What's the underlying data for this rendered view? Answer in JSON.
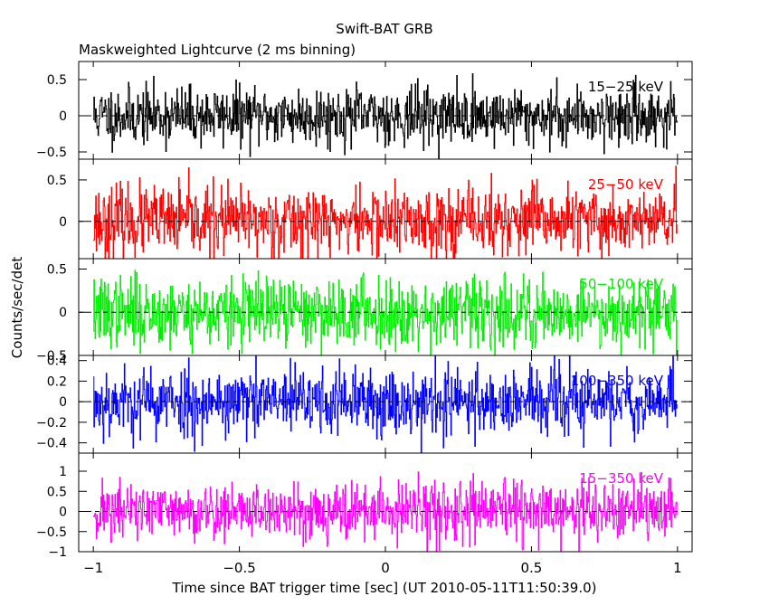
{
  "header": {
    "title": "Swift-BAT GRB",
    "subtitle": "Maskweighted Lightcurve (2 ms binning)"
  },
  "axes": {
    "xlabel": "Time since BAT trigger time [sec] (UT 2010-05-11T11:50:39.0)",
    "ylabel": "Counts/sec/det",
    "xlim": [
      -1.05,
      1.05
    ],
    "x_ticks": [
      -1,
      -0.5,
      0,
      0.5,
      1
    ],
    "x_tick_labels": [
      "−1",
      "−0.5",
      "0",
      "0.5",
      "1"
    ]
  },
  "chart_data": {
    "type": "line",
    "x_range": [
      -1.0,
      1.0
    ],
    "bin_width_sec": 0.002,
    "panels": [
      {
        "name": "15-25 keV",
        "label": "15−25 keV",
        "color": "#000000",
        "ylim": [
          -0.6,
          0.75
        ],
        "ticks": [
          -0.5,
          0,
          0.5
        ],
        "tick_labels": [
          "−0.5",
          "0",
          "0.5"
        ],
        "noise_sigma": 0.2,
        "seed": 11
      },
      {
        "name": "25-50 keV",
        "label": "25−50 keV",
        "color": "#ff0000",
        "ylim": [
          -0.45,
          0.75
        ],
        "ticks": [
          0,
          0.5
        ],
        "tick_labels": [
          "0",
          "0.5"
        ],
        "noise_sigma": 0.21,
        "seed": 23
      },
      {
        "name": "50-100 keV",
        "label": "50−100 keV",
        "color": "#00ee00",
        "ylim": [
          -0.5,
          0.62
        ],
        "ticks": [
          -0.5,
          0,
          0.5
        ],
        "tick_labels": [
          "−0.5",
          "0",
          "0.5"
        ],
        "noise_sigma": 0.2,
        "seed": 37
      },
      {
        "name": "100-350 keV",
        "label": "100−350 keV",
        "color": "#0000ff",
        "ylim": [
          -0.5,
          0.45
        ],
        "ticks": [
          -0.4,
          -0.2,
          0,
          0.2,
          0.4
        ],
        "tick_labels": [
          "−0.4",
          "−0.2",
          "0",
          "0.2",
          "0.4"
        ],
        "noise_sigma": 0.17,
        "seed": 53
      },
      {
        "name": "15-350 keV",
        "label": "15−350 keV",
        "color": "#ff00ff",
        "ylim": [
          -1.0,
          1.45
        ],
        "ticks": [
          -1,
          -0.5,
          0,
          0.5,
          1
        ],
        "tick_labels": [
          "−1",
          "−0.5",
          "0",
          "0.5",
          "1"
        ],
        "noise_sigma": 0.36,
        "seed": 71
      }
    ]
  }
}
